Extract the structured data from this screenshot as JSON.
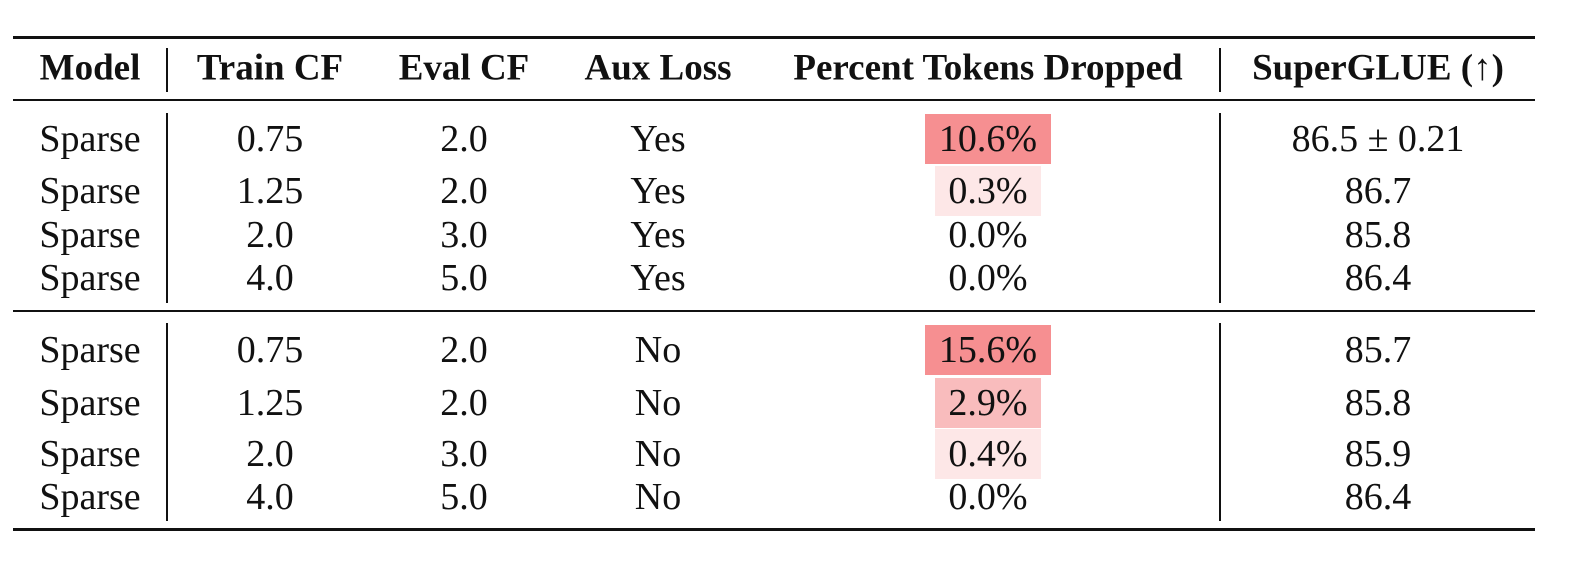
{
  "table": {
    "headers": [
      "Model",
      "Train CF",
      "Eval CF",
      "Aux Loss",
      "Percent Tokens Dropped",
      "SuperGLUE (↑)"
    ],
    "groups": [
      {
        "rows": [
          {
            "model": "Sparse",
            "train_cf": "0.75",
            "eval_cf": "2.0",
            "aux_loss": "Yes",
            "dropped": "10.6%",
            "superglue": "86.5 ± 0.21",
            "highlight": 0.84
          },
          {
            "model": "Sparse",
            "train_cf": "1.25",
            "eval_cf": "2.0",
            "aux_loss": "Yes",
            "dropped": "0.3%",
            "superglue": "86.7",
            "highlight": 0.18
          },
          {
            "model": "Sparse",
            "train_cf": "2.0",
            "eval_cf": "3.0",
            "aux_loss": "Yes",
            "dropped": "0.0%",
            "superglue": "85.8",
            "highlight": 0
          },
          {
            "model": "Sparse",
            "train_cf": "4.0",
            "eval_cf": "5.0",
            "aux_loss": "Yes",
            "dropped": "0.0%",
            "superglue": "86.4",
            "highlight": 0
          }
        ]
      },
      {
        "rows": [
          {
            "model": "Sparse",
            "train_cf": "0.75",
            "eval_cf": "2.0",
            "aux_loss": "No",
            "dropped": "15.6%",
            "superglue": "85.7",
            "highlight": 0.84
          },
          {
            "model": "Sparse",
            "train_cf": "1.25",
            "eval_cf": "2.0",
            "aux_loss": "No",
            "dropped": "2.9%",
            "superglue": "85.8",
            "highlight": 0.5
          },
          {
            "model": "Sparse",
            "train_cf": "2.0",
            "eval_cf": "3.0",
            "aux_loss": "No",
            "dropped": "0.4%",
            "superglue": "85.9",
            "highlight": 0.18
          },
          {
            "model": "Sparse",
            "train_cf": "4.0",
            "eval_cf": "5.0",
            "aux_loss": "No",
            "dropped": "0.0%",
            "superglue": "86.4",
            "highlight": 0
          }
        ]
      }
    ],
    "highlight_color": "#f47a7c"
  }
}
